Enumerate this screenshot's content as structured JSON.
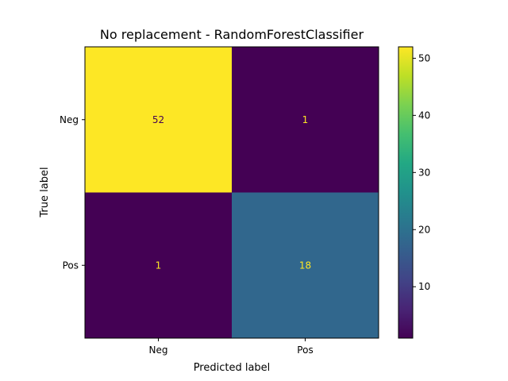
{
  "chart_data": {
    "type": "heatmap",
    "title": "No replacement - RandomForestClassifier",
    "xlabel": "Predicted label",
    "ylabel": "True label",
    "x_categories": [
      "Neg",
      "Pos"
    ],
    "y_categories": [
      "Neg",
      "Pos"
    ],
    "matrix": [
      [
        52,
        1
      ],
      [
        1,
        18
      ]
    ],
    "colormap": "viridis",
    "colorbar": {
      "range": [
        1,
        52
      ],
      "ticks": [
        10,
        20,
        30,
        40,
        50
      ],
      "tick_labels": [
        "10",
        "20",
        "30",
        "40",
        "50"
      ]
    },
    "text_color_dark_cells": "#fde725",
    "text_color_light_cells": "#440154"
  }
}
